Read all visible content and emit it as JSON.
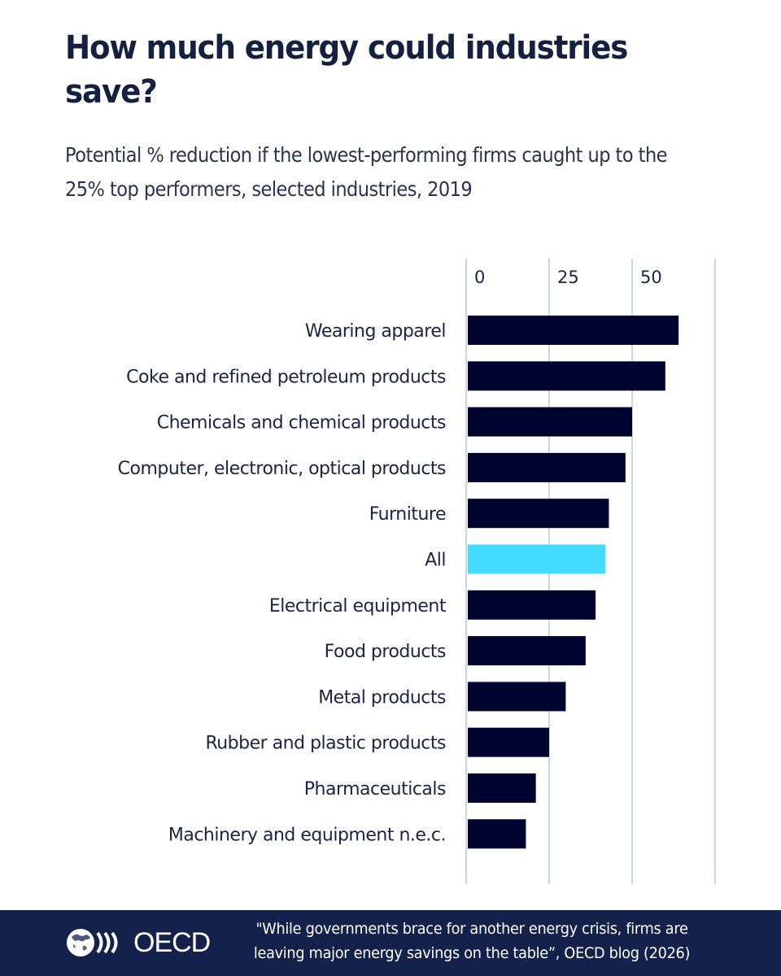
{
  "header": {
    "title": "How much energy could industries save?",
    "subtitle": "Potential % reduction if the lowest-performing firms caught up to the 25% top performers, selected industries, 2019"
  },
  "chart_data": {
    "type": "bar",
    "orientation": "horizontal",
    "title": "How much energy could industries save?",
    "subtitle": "Potential % reduction if the lowest-performing firms caught up to the 25% top performers, selected industries, 2019",
    "xlabel": "",
    "ylabel": "",
    "xlim": [
      0,
      75
    ],
    "xticks": [
      0,
      25,
      50,
      75
    ],
    "xtick_labels": [
      "0",
      "25",
      "50",
      ""
    ],
    "xaxis_position": "top",
    "grid": true,
    "categories": [
      "Wearing apparel",
      "Coke and refined petroleum products",
      "Chemicals and chemical products",
      "Computer, electronic, optical products",
      "Furniture",
      "All",
      "Electrical equipment",
      "Food products",
      "Metal products",
      "Rubber and plastic products",
      "Pharmaceuticals",
      "Machinery and equipment n.e.c."
    ],
    "values": [
      64,
      60,
      50,
      48,
      43,
      42,
      39,
      36,
      30,
      25,
      21,
      18
    ],
    "colors": {
      "default": "#000530",
      "highlight": "#45ddff",
      "highlight_category": "All",
      "grid": "#cfd6e0",
      "label": "#1b2347"
    }
  },
  "footer": {
    "logo_text": "OECD",
    "source_line1": "\"While governments brace for another energy crisis, firms are",
    "source_line2": "leaving major energy savings on the table”, OECD blog (2026)",
    "background": "#14214b"
  }
}
